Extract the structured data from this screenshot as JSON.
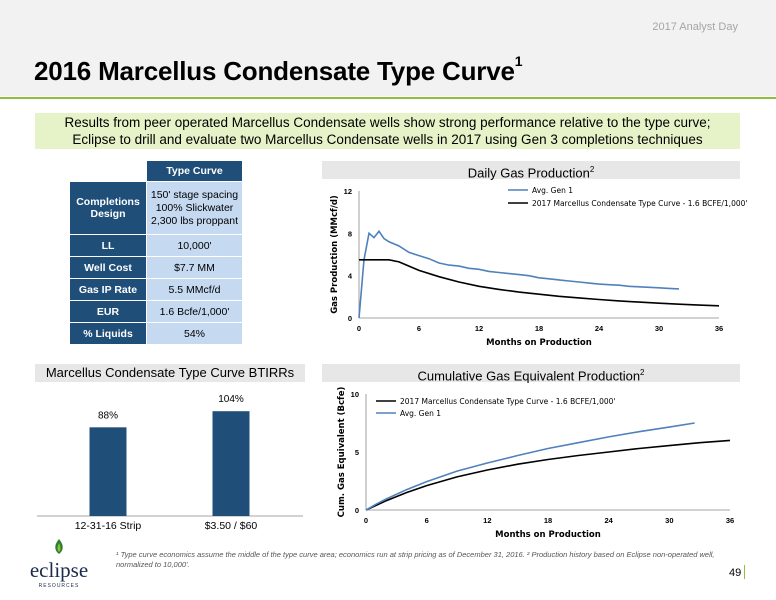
{
  "header": {
    "event": "2017 Analyst Day",
    "title": "2016 Marcellus Condensate Type Curve",
    "title_sup": "1"
  },
  "summary": {
    "line1": "Results from peer operated Marcellus Condensate wells show strong performance relative to the type curve;",
    "line2": "Eclipse to drill and evaluate two Marcellus Condensate wells in 2017 using Gen 3 completions techniques"
  },
  "type_curve_table": {
    "header": "Type Curve",
    "rows": [
      {
        "label": "Completions Design",
        "value_lines": [
          "150' stage spacing",
          "100% Slickwater",
          "2,300 lbs proppant"
        ]
      },
      {
        "label": "LL",
        "value": "10,000'"
      },
      {
        "label": "Well Cost",
        "value": "$7.7 MM"
      },
      {
        "label": "Gas IP Rate",
        "value": "5.5 MMcf/d"
      },
      {
        "label": "EUR",
        "value": "1.6 Bcfe/1,000'"
      },
      {
        "label": "% Liquids",
        "value": "54%"
      }
    ]
  },
  "sections": {
    "daily": {
      "title": "Daily Gas Production",
      "sup": "2"
    },
    "irr": {
      "title": "Marcellus Condensate Type Curve BTIRRs"
    },
    "cum": {
      "title": "Cumulative Gas Equivalent Production",
      "sup": "2"
    }
  },
  "chart_data": [
    {
      "type": "line",
      "xlabel": "Months on Production",
      "ylabel": "Gas Production (MMcf/d)",
      "xlim": [
        0,
        36
      ],
      "ylim": [
        0,
        12
      ],
      "xticks": [
        "0",
        "6",
        "12",
        "18",
        "24",
        "30",
        "36"
      ],
      "yticks": [
        "0",
        "4",
        "8",
        "12"
      ],
      "legend_position": "top-right",
      "colors": {
        "avg_gen1": "#4f81bd",
        "type_curve": "#000000"
      },
      "series": [
        {
          "name": "Avg. Gen 1",
          "x": [
            0,
            0.5,
            1,
            1.5,
            2,
            2.5,
            3,
            4,
            5,
            6,
            7,
            8,
            9,
            10,
            11,
            12,
            13,
            14,
            15,
            16,
            17,
            18,
            19,
            20,
            21,
            22,
            23,
            24,
            25,
            26,
            27,
            28,
            29,
            30,
            31,
            32
          ],
          "y": [
            0,
            5.5,
            8,
            7.6,
            8.2,
            7.5,
            7.2,
            6.8,
            6.2,
            5.9,
            5.6,
            5.2,
            5.0,
            4.9,
            4.7,
            4.6,
            4.4,
            4.3,
            4.2,
            4.1,
            4.0,
            3.8,
            3.7,
            3.6,
            3.5,
            3.4,
            3.3,
            3.2,
            3.15,
            3.1,
            3.0,
            2.95,
            2.9,
            2.85,
            2.8,
            2.75
          ]
        },
        {
          "name": "2017 Marcellus Condensate Type Curve - 1.6 BCFE/1,000'",
          "x": [
            0,
            1,
            2,
            3,
            4,
            5,
            6,
            8,
            10,
            12,
            14,
            16,
            18,
            20,
            22,
            24,
            26,
            28,
            30,
            32,
            34,
            36
          ],
          "y": [
            5.5,
            5.5,
            5.5,
            5.5,
            5.3,
            4.9,
            4.5,
            3.9,
            3.4,
            3.0,
            2.7,
            2.45,
            2.25,
            2.05,
            1.9,
            1.75,
            1.62,
            1.5,
            1.4,
            1.3,
            1.22,
            1.15
          ]
        }
      ]
    },
    {
      "type": "bar",
      "categories": [
        "12-31-16 Strip",
        "$3.50 / $60"
      ],
      "values": [
        88,
        104
      ],
      "data_labels": [
        "88%",
        "104%"
      ],
      "ylim": [
        0,
        130
      ],
      "colors": {
        "bar": "#1f4e79"
      }
    },
    {
      "type": "line",
      "xlabel": "Months on Production",
      "ylabel": "Cum. Gas Equivalent (Bcfe)",
      "xlim": [
        0,
        36
      ],
      "ylim": [
        0,
        10
      ],
      "xticks": [
        "0",
        "6",
        "12",
        "18",
        "24",
        "30",
        "36"
      ],
      "yticks": [
        "0",
        "5",
        "10"
      ],
      "legend_position": "top-left",
      "colors": {
        "type_curve": "#000000",
        "avg_gen1": "#4f81bd"
      },
      "series": [
        {
          "name": "2017 Marcellus Condensate Type Curve - 1.6 BCFE/1,000'",
          "x": [
            0,
            1,
            2,
            4,
            6,
            9,
            12,
            15,
            18,
            21,
            24,
            27,
            30,
            33,
            36
          ],
          "y": [
            0,
            0.4,
            0.8,
            1.5,
            2.1,
            2.85,
            3.45,
            3.95,
            4.35,
            4.7,
            5.0,
            5.3,
            5.55,
            5.8,
            6.0
          ]
        },
        {
          "name": "Avg. Gen 1",
          "x": [
            0,
            1,
            2,
            4,
            6,
            9,
            12,
            15,
            18,
            21,
            24,
            27,
            30,
            32.5
          ],
          "y": [
            0,
            0.5,
            0.95,
            1.75,
            2.45,
            3.35,
            4.05,
            4.7,
            5.3,
            5.8,
            6.3,
            6.75,
            7.15,
            7.5
          ]
        }
      ]
    }
  ],
  "footnote": {
    "text": "¹ Type curve economics assume the middle of the type curve area; economics run at strip pricing as of December 31, 2016. ² Production history based on Eclipse non-operated well, normalized to 10,000'."
  },
  "page_number": "49",
  "logo": {
    "wordmark": "eclipse",
    "tagline": "RESOURCES"
  }
}
